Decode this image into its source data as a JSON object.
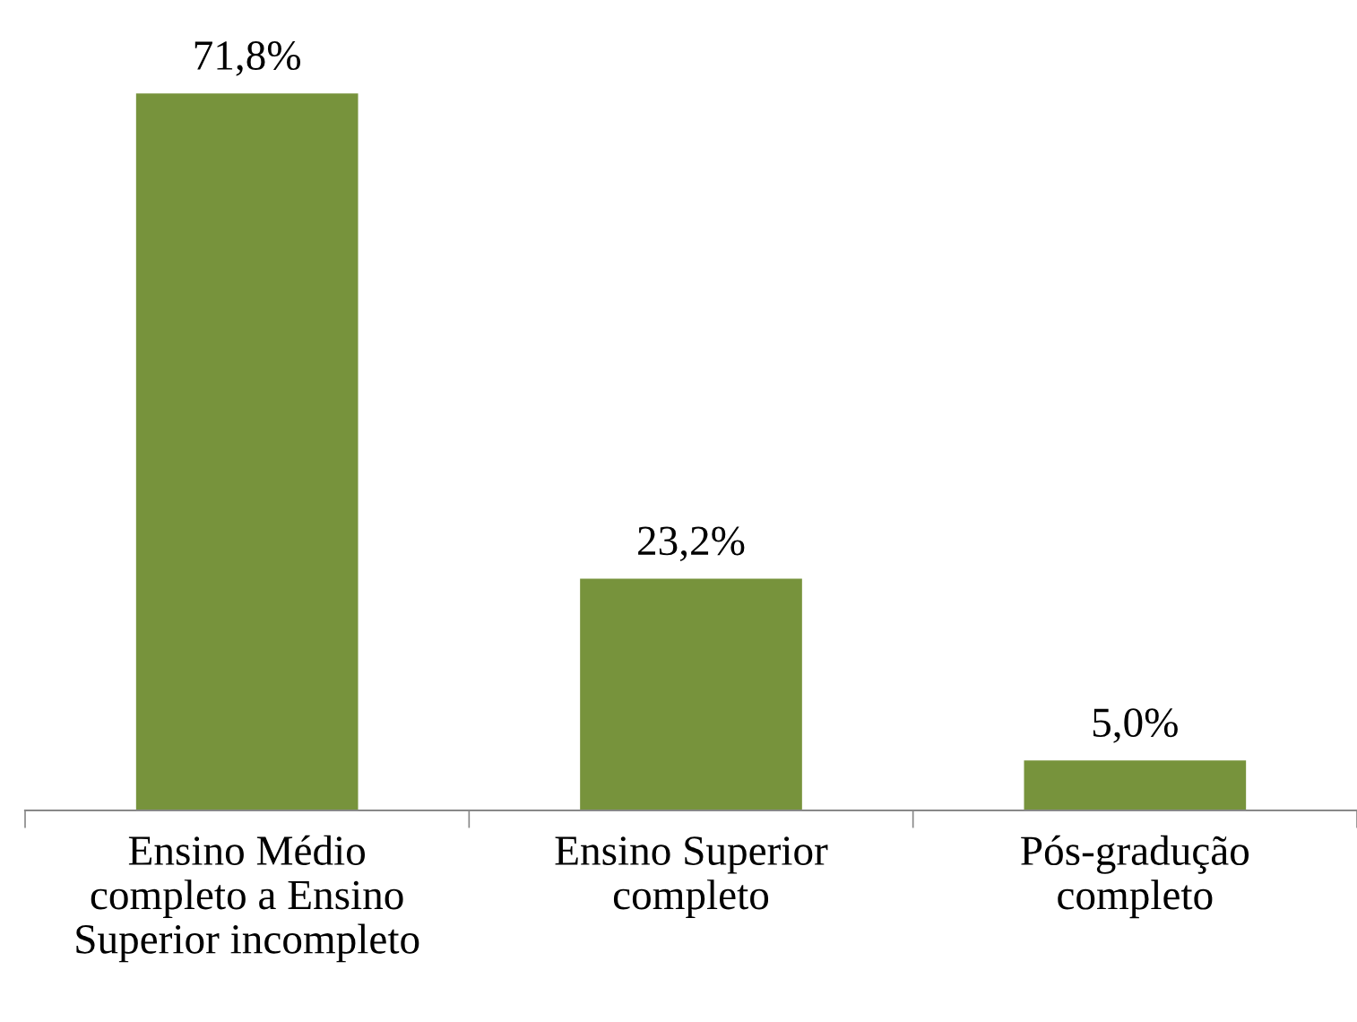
{
  "chart_data": {
    "type": "bar",
    "categories": [
      "Ensino Médio\ncompleto a Ensino\nSuperior incompleto",
      "Ensino Superior\ncompleto",
      "Pós-gradução\ncompleto"
    ],
    "values": [
      71.8,
      23.2,
      5.0
    ],
    "value_labels": [
      "71,8%",
      "23,2%",
      "5,0%"
    ],
    "color": "#77933c",
    "grid": false,
    "legend": false
  }
}
